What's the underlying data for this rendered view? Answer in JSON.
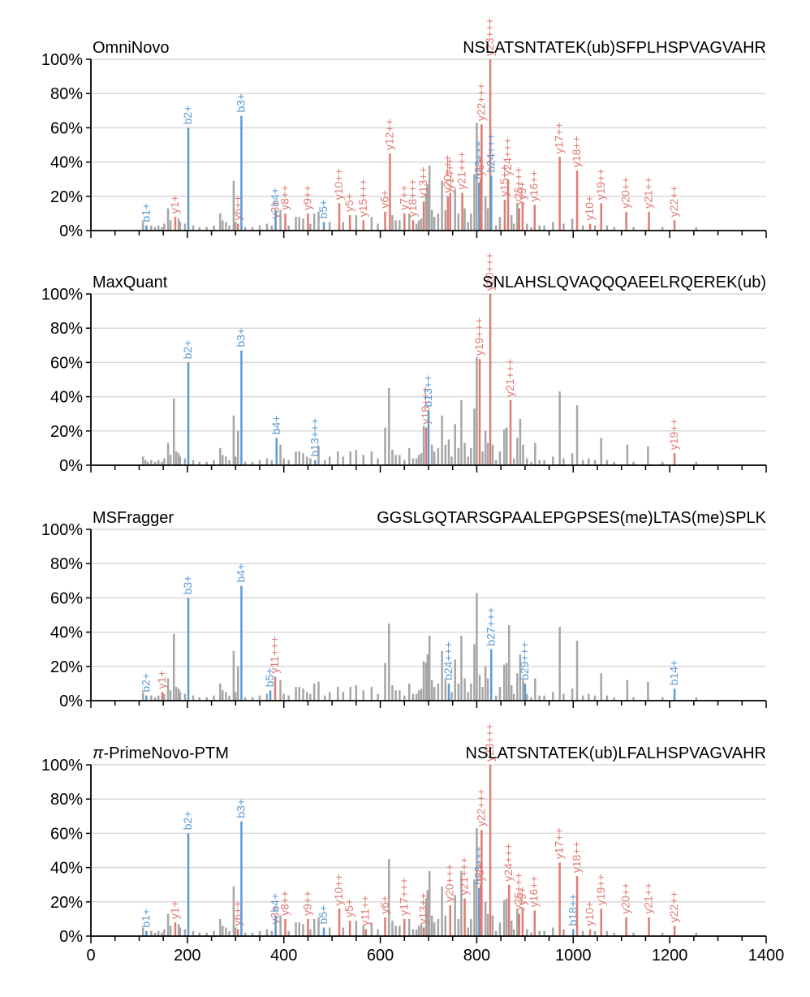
{
  "colors": {
    "b_ion": "#5b9bd5",
    "y_ion": "#e07b72",
    "unmatched": "#a6a6a6",
    "grid": "#d9d9d9",
    "axis": "#000000"
  },
  "chart_data": {
    "type": "bar",
    "xlim": [
      0,
      1400
    ],
    "xticks": [
      "0",
      "200",
      "400",
      "600",
      "800",
      "1000",
      "1200",
      "1400"
    ],
    "ylim": [
      0,
      100
    ],
    "yticks": [
      "0%",
      "20%",
      "40%",
      "60%",
      "80%",
      "100%"
    ],
    "grid": true,
    "background_peaks": [
      [
        108,
        5
      ],
      [
        113,
        3
      ],
      [
        118,
        2
      ],
      [
        125,
        3
      ],
      [
        133,
        2
      ],
      [
        140,
        3
      ],
      [
        147,
        2
      ],
      [
        152,
        4
      ],
      [
        160,
        13
      ],
      [
        165,
        6
      ],
      [
        172,
        39
      ],
      [
        177,
        8
      ],
      [
        182,
        7
      ],
      [
        185,
        5
      ],
      [
        195,
        4
      ],
      [
        202,
        12
      ],
      [
        212,
        3
      ],
      [
        225,
        2
      ],
      [
        240,
        2
      ],
      [
        255,
        3
      ],
      [
        268,
        10
      ],
      [
        273,
        6
      ],
      [
        280,
        5
      ],
      [
        287,
        3
      ],
      [
        296,
        29
      ],
      [
        300,
        5
      ],
      [
        305,
        20
      ],
      [
        320,
        2
      ],
      [
        335,
        2
      ],
      [
        350,
        3
      ],
      [
        365,
        4
      ],
      [
        375,
        3
      ],
      [
        383,
        9
      ],
      [
        393,
        12
      ],
      [
        400,
        4
      ],
      [
        410,
        3
      ],
      [
        425,
        8
      ],
      [
        432,
        8
      ],
      [
        440,
        7
      ],
      [
        448,
        5
      ],
      [
        455,
        4
      ],
      [
        463,
        10
      ],
      [
        472,
        11
      ],
      [
        485,
        3
      ],
      [
        495,
        5
      ],
      [
        512,
        8
      ],
      [
        523,
        5
      ],
      [
        538,
        8
      ],
      [
        550,
        9
      ],
      [
        565,
        6
      ],
      [
        582,
        8
      ],
      [
        595,
        4
      ],
      [
        610,
        22
      ],
      [
        618,
        45
      ],
      [
        625,
        9
      ],
      [
        632,
        6
      ],
      [
        640,
        6
      ],
      [
        650,
        3
      ],
      [
        660,
        10
      ],
      [
        668,
        4
      ],
      [
        675,
        4
      ],
      [
        680,
        6
      ],
      [
        685,
        7
      ],
      [
        690,
        23
      ],
      [
        695,
        22
      ],
      [
        698,
        27
      ],
      [
        702,
        38
      ],
      [
        707,
        12
      ],
      [
        712,
        8
      ],
      [
        720,
        10
      ],
      [
        728,
        29
      ],
      [
        735,
        12
      ],
      [
        742,
        15
      ],
      [
        748,
        5
      ],
      [
        755,
        24
      ],
      [
        762,
        10
      ],
      [
        768,
        38
      ],
      [
        775,
        13
      ],
      [
        782,
        5
      ],
      [
        788,
        10
      ],
      [
        795,
        33
      ],
      [
        800,
        63
      ],
      [
        806,
        15
      ],
      [
        812,
        8
      ],
      [
        818,
        20
      ],
      [
        823,
        13
      ],
      [
        828,
        100
      ],
      [
        833,
        12
      ],
      [
        840,
        3
      ],
      [
        848,
        8
      ],
      [
        857,
        21
      ],
      [
        862,
        22
      ],
      [
        867,
        44
      ],
      [
        872,
        9
      ],
      [
        877,
        4
      ],
      [
        884,
        16
      ],
      [
        890,
        27
      ],
      [
        896,
        12
      ],
      [
        904,
        4
      ],
      [
        913,
        2
      ],
      [
        921,
        13
      ],
      [
        930,
        3
      ],
      [
        940,
        3
      ],
      [
        958,
        5
      ],
      [
        972,
        43
      ],
      [
        980,
        4
      ],
      [
        998,
        7
      ],
      [
        1008,
        35
      ],
      [
        1020,
        3
      ],
      [
        1032,
        4
      ],
      [
        1045,
        3
      ],
      [
        1058,
        16
      ],
      [
        1070,
        3
      ],
      [
        1085,
        2
      ],
      [
        1112,
        12
      ],
      [
        1125,
        2
      ],
      [
        1155,
        11
      ],
      [
        1185,
        2
      ],
      [
        1210,
        6
      ],
      [
        1255,
        2
      ]
    ],
    "panels": [
      {
        "method": "OmniNovo",
        "peptide": "NSLATSNTATEK(ub)SFPLHSPVAGVAHR",
        "ions": [
          {
            "label": "b1+",
            "mz": 115,
            "intensity": 3,
            "type": "b"
          },
          {
            "label": "y1+",
            "mz": 175,
            "intensity": 8,
            "type": "y"
          },
          {
            "label": "b2+",
            "mz": 202,
            "intensity": 60,
            "type": "b"
          },
          {
            "label": "y6++",
            "mz": 305,
            "intensity": 4,
            "type": "y"
          },
          {
            "label": "b3+",
            "mz": 312,
            "intensity": 67,
            "type": "b"
          },
          {
            "label": "y3+",
            "mz": 383,
            "intensity": 5,
            "type": "y"
          },
          {
            "label": "b4+",
            "mz": 383,
            "intensity": 12,
            "type": "b"
          },
          {
            "label": "y8++",
            "mz": 403,
            "intensity": 10,
            "type": "y"
          },
          {
            "label": "y9++",
            "mz": 450,
            "intensity": 10,
            "type": "y"
          },
          {
            "label": "b5+",
            "mz": 483,
            "intensity": 5,
            "type": "b"
          },
          {
            "label": "y10++",
            "mz": 515,
            "intensity": 16,
            "type": "y"
          },
          {
            "label": "y5+",
            "mz": 537,
            "intensity": 9,
            "type": "y"
          },
          {
            "label": "y15+++",
            "mz": 565,
            "intensity": 6,
            "type": "y"
          },
          {
            "label": "y6+",
            "mz": 610,
            "intensity": 11,
            "type": "y"
          },
          {
            "label": "y12++",
            "mz": 620,
            "intensity": 45,
            "type": "y"
          },
          {
            "label": "y7++",
            "mz": 650,
            "intensity": 10,
            "type": "y"
          },
          {
            "label": "y18+++",
            "mz": 668,
            "intensity": 6,
            "type": "y"
          },
          {
            "label": "y13++",
            "mz": 690,
            "intensity": 17,
            "type": "y"
          },
          {
            "label": "y20+++",
            "mz": 740,
            "intensity": 20,
            "type": "y"
          },
          {
            "label": "y14++",
            "mz": 745,
            "intensity": 22,
            "type": "y"
          },
          {
            "label": "y21+++",
            "mz": 770,
            "intensity": 22,
            "type": "y"
          },
          {
            "label": "b23+++",
            "mz": 805,
            "intensity": 28,
            "type": "b"
          },
          {
            "label": "y8+",
            "mz": 808,
            "intensity": 30,
            "type": "y"
          },
          {
            "label": "y22+++",
            "mz": 810,
            "intensity": 62,
            "type": "y"
          },
          {
            "label": "y23+++",
            "mz": 828,
            "intensity": 100,
            "type": "y"
          },
          {
            "label": "b24+++",
            "mz": 830,
            "intensity": 32,
            "type": "b"
          },
          {
            "label": "y15++",
            "mz": 858,
            "intensity": 18,
            "type": "y"
          },
          {
            "label": "y24+++",
            "mz": 865,
            "intensity": 30,
            "type": "y"
          },
          {
            "label": "y25+++",
            "mz": 888,
            "intensity": 13,
            "type": "y"
          },
          {
            "label": "y9+",
            "mz": 895,
            "intensity": 16,
            "type": "y"
          },
          {
            "label": "y16++",
            "mz": 920,
            "intensity": 15,
            "type": "y"
          },
          {
            "label": "y17++",
            "mz": 972,
            "intensity": 43,
            "type": "y"
          },
          {
            "label": "y18++",
            "mz": 1008,
            "intensity": 35,
            "type": "y"
          },
          {
            "label": "y10+",
            "mz": 1035,
            "intensity": 4,
            "type": "y"
          },
          {
            "label": "y19++",
            "mz": 1058,
            "intensity": 16,
            "type": "y"
          },
          {
            "label": "y20++",
            "mz": 1110,
            "intensity": 11,
            "type": "y"
          },
          {
            "label": "y21++",
            "mz": 1157,
            "intensity": 11,
            "type": "y"
          },
          {
            "label": "y22++",
            "mz": 1210,
            "intensity": 6,
            "type": "y"
          }
        ]
      },
      {
        "method": "MaxQuant",
        "peptide": "SNLAHSLQVAQQQAEELRQEREK(ub)",
        "ions": [
          {
            "label": "b2+",
            "mz": 202,
            "intensity": 60,
            "type": "b"
          },
          {
            "label": "b3+",
            "mz": 312,
            "intensity": 67,
            "type": "b"
          },
          {
            "label": "b4+",
            "mz": 385,
            "intensity": 16,
            "type": "b"
          },
          {
            "label": "b13+++",
            "mz": 465,
            "intensity": 3,
            "type": "b"
          },
          {
            "label": "y18+++",
            "mz": 695,
            "intensity": 22,
            "type": "y"
          },
          {
            "label": "b13++",
            "mz": 700,
            "intensity": 32,
            "type": "b"
          },
          {
            "label": "y19+++",
            "mz": 806,
            "intensity": 62,
            "type": "y"
          },
          {
            "label": "y20+++",
            "mz": 828,
            "intensity": 100,
            "type": "y"
          },
          {
            "label": "y21+++",
            "mz": 870,
            "intensity": 38,
            "type": "y"
          },
          {
            "label": "y19++",
            "mz": 1210,
            "intensity": 7,
            "type": "y"
          }
        ]
      },
      {
        "method": "MSFragger",
        "peptide": "GGSLGQTARSGPAALEPGPSES(me)LTAS(me)SPLK",
        "ions": [
          {
            "label": "b2+",
            "mz": 115,
            "intensity": 3,
            "type": "b"
          },
          {
            "label": "y1+",
            "mz": 148,
            "intensity": 5,
            "type": "y"
          },
          {
            "label": "b3+",
            "mz": 202,
            "intensity": 60,
            "type": "b"
          },
          {
            "label": "b4+",
            "mz": 312,
            "intensity": 67,
            "type": "b"
          },
          {
            "label": "b5+",
            "mz": 372,
            "intensity": 6,
            "type": "b"
          },
          {
            "label": "y11+++",
            "mz": 382,
            "intensity": 14,
            "type": "y"
          },
          {
            "label": "b24+++",
            "mz": 742,
            "intensity": 10,
            "type": "b"
          },
          {
            "label": "b27+++",
            "mz": 830,
            "intensity": 30,
            "type": "b"
          },
          {
            "label": "b29+++",
            "mz": 900,
            "intensity": 10,
            "type": "b"
          },
          {
            "label": "b14+",
            "mz": 1210,
            "intensity": 7,
            "type": "b"
          }
        ]
      },
      {
        "method": "π-PrimeNovo-PTM",
        "method_symbol": "π",
        "method_rest": "-PrimeNovo-PTM",
        "peptide": "NSLATSNTATEK(ub)LFALHSPVAGVAHR",
        "ions": [
          {
            "label": "b1+",
            "mz": 115,
            "intensity": 3,
            "type": "b"
          },
          {
            "label": "y1+",
            "mz": 175,
            "intensity": 8,
            "type": "y"
          },
          {
            "label": "b2+",
            "mz": 202,
            "intensity": 60,
            "type": "b"
          },
          {
            "label": "y6++",
            "mz": 305,
            "intensity": 4,
            "type": "y"
          },
          {
            "label": "b3+",
            "mz": 312,
            "intensity": 67,
            "type": "b"
          },
          {
            "label": "y3+",
            "mz": 383,
            "intensity": 5,
            "type": "y"
          },
          {
            "label": "b4+",
            "mz": 383,
            "intensity": 12,
            "type": "b"
          },
          {
            "label": "y8++",
            "mz": 403,
            "intensity": 10,
            "type": "y"
          },
          {
            "label": "y9++",
            "mz": 450,
            "intensity": 10,
            "type": "y"
          },
          {
            "label": "b5+",
            "mz": 483,
            "intensity": 5,
            "type": "b"
          },
          {
            "label": "y10++",
            "mz": 515,
            "intensity": 16,
            "type": "y"
          },
          {
            "label": "y5+",
            "mz": 537,
            "intensity": 9,
            "type": "y"
          },
          {
            "label": "y11++",
            "mz": 570,
            "intensity": 4,
            "type": "y"
          },
          {
            "label": "y6+",
            "mz": 610,
            "intensity": 11,
            "type": "y"
          },
          {
            "label": "y17+++",
            "mz": 650,
            "intensity": 10,
            "type": "y"
          },
          {
            "label": "y13++",
            "mz": 690,
            "intensity": 5,
            "type": "y"
          },
          {
            "label": "y20+++",
            "mz": 745,
            "intensity": 18,
            "type": "y"
          },
          {
            "label": "y21+++",
            "mz": 775,
            "intensity": 22,
            "type": "y"
          },
          {
            "label": "b23+++",
            "mz": 805,
            "intensity": 28,
            "type": "b"
          },
          {
            "label": "y8+",
            "mz": 808,
            "intensity": 30,
            "type": "y"
          },
          {
            "label": "y22+++",
            "mz": 810,
            "intensity": 62,
            "type": "y"
          },
          {
            "label": "y23+++",
            "mz": 828,
            "intensity": 100,
            "type": "y"
          },
          {
            "label": "y24+++",
            "mz": 867,
            "intensity": 30,
            "type": "y"
          },
          {
            "label": "y25+++",
            "mz": 888,
            "intensity": 13,
            "type": "y"
          },
          {
            "label": "y9+",
            "mz": 895,
            "intensity": 16,
            "type": "y"
          },
          {
            "label": "y16++",
            "mz": 920,
            "intensity": 15,
            "type": "y"
          },
          {
            "label": "y17++",
            "mz": 972,
            "intensity": 43,
            "type": "y"
          },
          {
            "label": "b18++",
            "mz": 1000,
            "intensity": 4,
            "type": "b"
          },
          {
            "label": "y18++",
            "mz": 1008,
            "intensity": 35,
            "type": "y"
          },
          {
            "label": "y10+",
            "mz": 1035,
            "intensity": 4,
            "type": "y"
          },
          {
            "label": "y19++",
            "mz": 1058,
            "intensity": 16,
            "type": "y"
          },
          {
            "label": "y20++",
            "mz": 1110,
            "intensity": 11,
            "type": "y"
          },
          {
            "label": "y21++",
            "mz": 1157,
            "intensity": 11,
            "type": "y"
          },
          {
            "label": "y22++",
            "mz": 1210,
            "intensity": 6,
            "type": "y"
          }
        ]
      }
    ]
  }
}
